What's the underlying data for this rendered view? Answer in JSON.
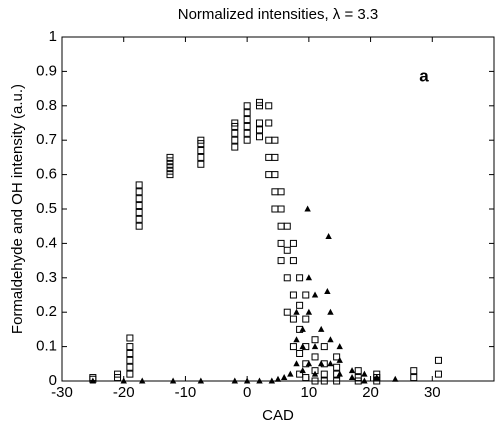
{
  "chart_data": {
    "type": "scatter",
    "title": "Normalized intensities, λ = 3.3",
    "x_label": "CAD",
    "y_label": "Formaldehyde and OH intensity (a.u.)",
    "annotation": "a",
    "xlim": [
      -30,
      40
    ],
    "ylim": [
      0,
      1
    ],
    "xticks": [
      -30,
      -20,
      -10,
      0,
      10,
      20,
      30
    ],
    "yticks": [
      0,
      0.1,
      0.2,
      0.3,
      0.4,
      0.5,
      0.6,
      0.7,
      0.8,
      0.9,
      1
    ],
    "series": [
      {
        "marker": "square",
        "color": "#000000",
        "x": [
          -25,
          -25,
          -21,
          -21,
          -19,
          -19,
          -19,
          -19,
          -19,
          -19,
          -17.5,
          -17.5,
          -17.5,
          -17.5,
          -17.5,
          -17.5,
          -17.5,
          -12.5,
          -12.5,
          -12.5,
          -12.5,
          -12.5,
          -12.5,
          -7.5,
          -7.5,
          -7.5,
          -7.5,
          -7.5,
          -2,
          -2,
          -2,
          -2,
          -2,
          0,
          0,
          0,
          0,
          0,
          0,
          2,
          2,
          2,
          2,
          2,
          3.5,
          3.5,
          3.5,
          3.5,
          3.5,
          4.5,
          4.5,
          4.5,
          4.5,
          4.5,
          5.5,
          5.5,
          5.5,
          5.5,
          5.5,
          6.5,
          6.5,
          6.5,
          6.5,
          7.5,
          7.5,
          7.5,
          7.5,
          7.5,
          8.5,
          8.5,
          8.5,
          8.5,
          8.5,
          9.5,
          9.5,
          9.5,
          9.5,
          9.5,
          11,
          11,
          11,
          11,
          12.5,
          12.5,
          12.5,
          12.5,
          14.5,
          14.5,
          14.5,
          14.5,
          18,
          18,
          18,
          21,
          21,
          21,
          27,
          27,
          31,
          31
        ],
        "values": [
          0.01,
          0.005,
          0.01,
          0.02,
          0.02,
          0.04,
          0.06,
          0.08,
          0.1,
          0.125,
          0.45,
          0.47,
          0.49,
          0.51,
          0.53,
          0.55,
          0.57,
          0.6,
          0.61,
          0.62,
          0.63,
          0.64,
          0.65,
          0.63,
          0.65,
          0.67,
          0.69,
          0.7,
          0.68,
          0.7,
          0.72,
          0.74,
          0.75,
          0.7,
          0.72,
          0.74,
          0.76,
          0.78,
          0.8,
          0.71,
          0.73,
          0.75,
          0.8,
          0.81,
          0.6,
          0.65,
          0.7,
          0.75,
          0.8,
          0.5,
          0.55,
          0.6,
          0.65,
          0.7,
          0.35,
          0.4,
          0.45,
          0.5,
          0.55,
          0.2,
          0.3,
          0.38,
          0.45,
          0.1,
          0.18,
          0.25,
          0.35,
          0.4,
          0.02,
          0.08,
          0.15,
          0.22,
          0.3,
          0.01,
          0.05,
          0.1,
          0.18,
          0.25,
          0,
          0.03,
          0.07,
          0.12,
          0,
          0.02,
          0.05,
          0.1,
          0,
          0.02,
          0.04,
          0.07,
          0,
          0.01,
          0.03,
          0,
          0.01,
          0.02,
          0.01,
          0.03,
          0.02,
          0.06
        ]
      },
      {
        "marker": "triangle",
        "color": "#000000",
        "x": [
          -25,
          -20,
          -17,
          -12,
          -7.5,
          -2,
          0,
          2,
          4,
          5,
          6,
          7,
          8,
          8,
          8,
          9,
          9,
          9,
          9.8,
          10,
          10,
          10,
          11,
          11,
          11,
          12,
          12,
          13.2,
          13,
          13.5,
          13.5,
          13.5,
          15,
          15,
          15,
          17,
          17,
          19,
          19,
          21,
          24
        ],
        "values": [
          0,
          0,
          0,
          0,
          0,
          0,
          0,
          0,
          0,
          0.005,
          0.01,
          0.02,
          0.05,
          0.12,
          0.2,
          0.03,
          0.1,
          0.15,
          0.5,
          0.05,
          0.2,
          0.3,
          0.02,
          0.1,
          0.25,
          0.05,
          0.15,
          0.42,
          0.26,
          0.05,
          0.12,
          0.2,
          0.02,
          0.06,
          0.1,
          0.01,
          0.03,
          0,
          0.02,
          0.01,
          0.005
        ]
      }
    ]
  }
}
